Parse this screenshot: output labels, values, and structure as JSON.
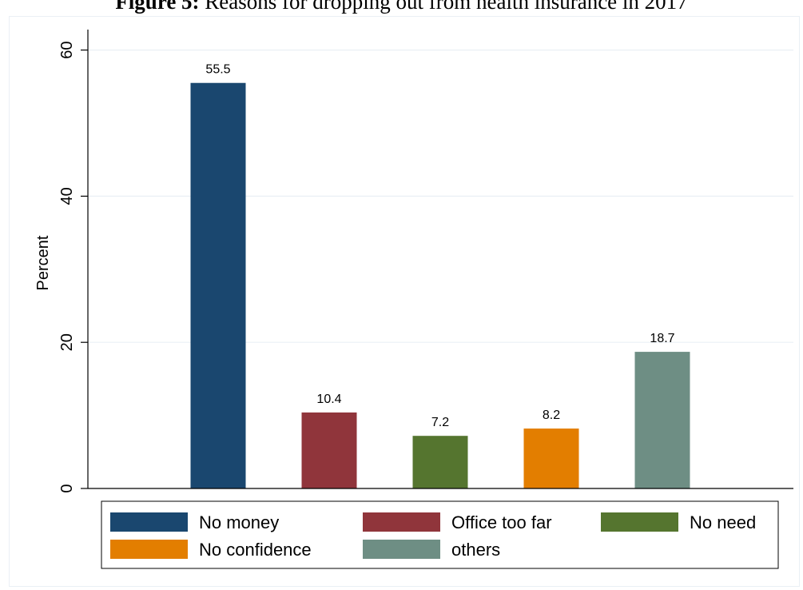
{
  "figure": {
    "label": "Figure 5:",
    "caption": " Reasons for dropping out from health insurance in 2017"
  },
  "chart_data": {
    "type": "bar",
    "ylabel": "Percent",
    "xlabel": "",
    "ylim": [
      0,
      62.8
    ],
    "yticks": [
      0,
      20,
      40,
      60
    ],
    "grid": true,
    "legend_position": "bottom",
    "categories": [
      "No money",
      "Office too far",
      "No need",
      "No confidence",
      "others"
    ],
    "values": [
      55.5,
      10.4,
      7.2,
      8.2,
      18.7
    ],
    "data_labels": [
      "55.5",
      "10.4",
      "7.2",
      "8.2",
      "18.7"
    ],
    "colors": [
      "#1a476f",
      "#90353b",
      "#55752f",
      "#e37e00",
      "#6e8e84"
    ]
  }
}
